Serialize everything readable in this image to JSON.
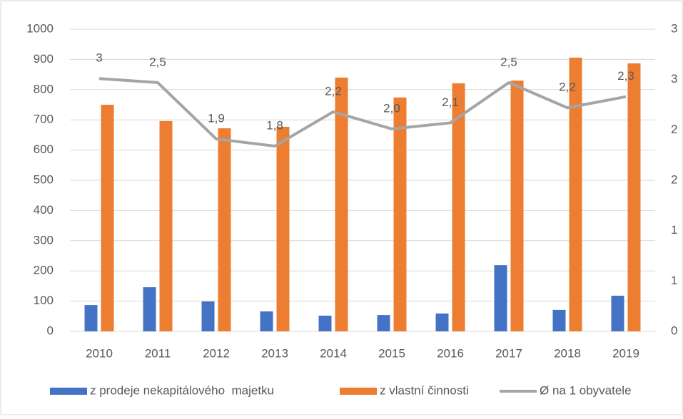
{
  "chart_data": {
    "type": "bar",
    "categories": [
      "2010",
      "2011",
      "2012",
      "2013",
      "2014",
      "2015",
      "2016",
      "2017",
      "2018",
      "2019"
    ],
    "series": [
      {
        "name": "z prodeje nekapitálového  majetku",
        "color": "#4472c4",
        "values": [
          87,
          146,
          99,
          66,
          52,
          54,
          59,
          219,
          71,
          118
        ]
      },
      {
        "name": "z vlastní činnosti",
        "color": "#ed7d31",
        "values": [
          750,
          696,
          672,
          677,
          840,
          774,
          821,
          830,
          906,
          887
        ]
      },
      {
        "name": "Ø na 1 obyvatele",
        "color": "#a5a5a5",
        "type": "line",
        "axis": "y2",
        "values": [
          2.51,
          2.47,
          1.91,
          1.84,
          2.18,
          2.01,
          2.07,
          2.47,
          2.22,
          2.33
        ],
        "value_labels": [
          "3",
          "2,5",
          "1,9",
          "1,8",
          "2,2",
          "2,0",
          "2,1",
          "2,5",
          "2,2",
          "2,3"
        ]
      }
    ],
    "ylim": [
      0,
      1000
    ],
    "yticks": [
      0,
      100,
      200,
      300,
      400,
      500,
      600,
      700,
      800,
      900,
      1000
    ],
    "y2lim": [
      0,
      3
    ],
    "y2ticks": [
      0,
      {
        "value": 0.5,
        "label": "1"
      },
      1,
      {
        "value": 1.5,
        "label": "2"
      },
      2,
      {
        "value": 2.5,
        "label": "3"
      },
      3
    ],
    "grid": true,
    "legend": "bottom"
  }
}
